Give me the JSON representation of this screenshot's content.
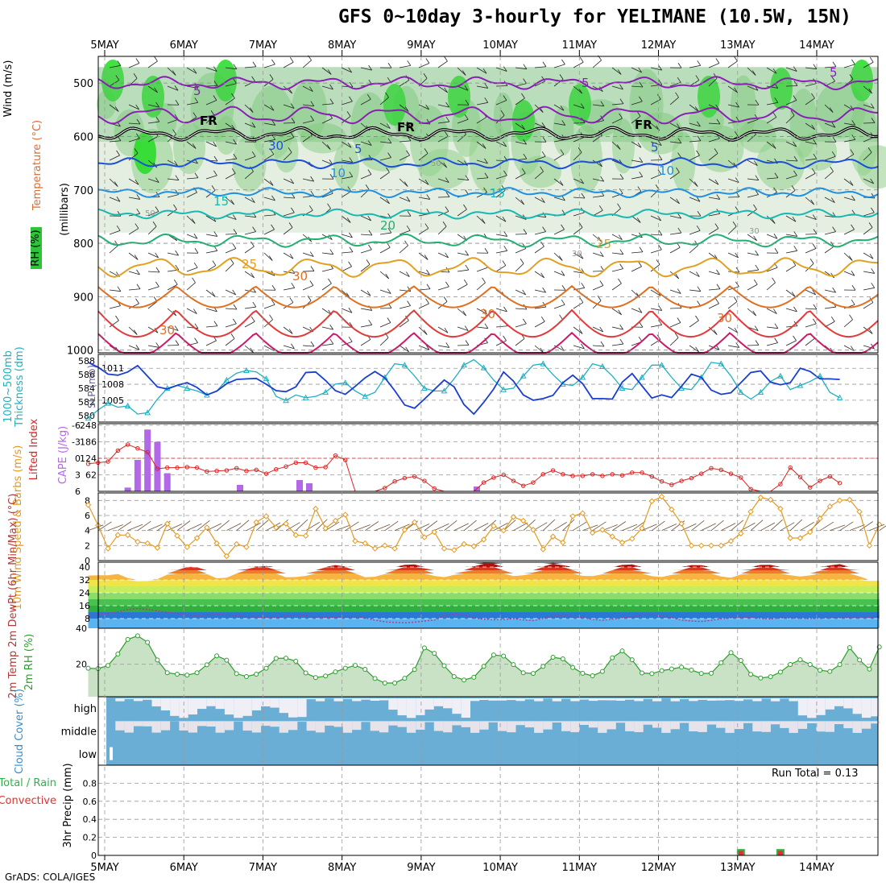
{
  "header": {
    "title": "GFS 0~10day 3-hourly for YELIMANE (10.5W, 15N)",
    "credit": "GrADS: COLA/IGES"
  },
  "dates": [
    "5MAY",
    "6MAY",
    "7MAY",
    "8MAY",
    "9MAY",
    "10MAY",
    "11MAY",
    "12MAY",
    "13MAY",
    "14MAY"
  ],
  "chart_data": [
    {
      "panel": "upper-air",
      "type": "heatmap",
      "ylabel_rh": "RH (%)",
      "ylabel_temp": "Temperature (°C)",
      "ylabel_wind": "Wind (m/s)",
      "ylabel_units": "(millibars)",
      "y_ticks": [
        500,
        600,
        700,
        800,
        900,
        1000
      ],
      "ylim": [
        450,
        1005
      ],
      "isotherm_labels": [
        "5",
        "5",
        "5",
        "FR",
        "FR",
        "FR",
        "30",
        "5",
        "5",
        "10",
        "10",
        "15",
        "15",
        "20",
        "25",
        "25",
        "30",
        "30",
        "30",
        "30",
        "50",
        "50",
        "30",
        "30"
      ],
      "isotherms_c": [
        -5,
        0,
        5,
        10,
        15,
        20,
        25,
        30
      ],
      "isotherm_colors": [
        "#8b1fb5",
        "#000000",
        "#1c4fd6",
        "#1e90e0",
        "#18b8b0",
        "#20b070",
        "#e0a020",
        "#e07020"
      ]
    },
    {
      "panel": "thickness-slp",
      "type": "line",
      "ylabel_left": "Thickness (dm)",
      "ylabel_left2": "1000~500mb",
      "ylabel_right": "SLP (mb)",
      "left_ticks": [
        580,
        582,
        584,
        586,
        588
      ],
      "right_ticks": [
        1005,
        1008,
        1011
      ],
      "ylim_thickness": [
        579.5,
        588.5
      ],
      "ylim_slp": [
        1001.5,
        1013
      ],
      "series": [
        {
          "name": "1000~500mb Thickness",
          "color": "#20b0c0",
          "values": [
            579.6,
            580.8,
            581.8,
            581.2,
            581.4,
            580.2,
            580.4,
            582.4,
            584,
            584.4,
            584,
            583.6,
            583,
            583.6,
            585.2,
            586.2,
            586.6,
            586.4,
            585.4,
            582.8,
            582.2,
            583,
            582.6,
            582.8,
            583.4,
            584.6,
            584.8,
            583.6,
            582.8,
            583.4,
            585.6,
            587.6,
            587.4,
            585.8,
            584,
            583.6,
            583.6,
            585.4,
            587.4,
            588.2,
            587,
            585.2,
            583.8,
            584,
            585.8,
            587.4,
            587.6,
            586,
            584.6,
            584.4,
            585.6,
            587.6,
            587.2,
            585.8,
            584,
            583.8,
            585.6,
            587.4,
            587.4,
            585.6,
            584,
            583.8,
            585.6,
            587.8,
            587.6,
            585.8,
            583.4,
            582.4,
            583.4,
            585,
            585.8,
            583.8,
            584.4,
            585,
            585.8,
            583.4,
            582.6
          ]
        },
        {
          "name": "SLP",
          "color": "#1a3fcf",
          "values": [
            1012.1,
            1011.2,
            1009.9,
            1009.7,
            1010.3,
            1011.5,
            1009.5,
            1007.5,
            1007.1,
            1007.8,
            1008.3,
            1007.4,
            1006,
            1006.7,
            1008.1,
            1008.9,
            1009,
            1009.1,
            1008,
            1006.8,
            1006.6,
            1007.5,
            1010.2,
            1010.3,
            1008.7,
            1006.8,
            1006.1,
            1007.6,
            1009.2,
            1010.4,
            1009.2,
            1006.8,
            1004.1,
            1003.5,
            1005.2,
            1007,
            1008.8,
            1007.5,
            1004.2,
            1002.4,
            1004.6,
            1007.1,
            1010.3,
            1008.6,
            1006,
            1005,
            1005.3,
            1005.9,
            1008.3,
            1009.7,
            1008.1,
            1005.3,
            1005.3,
            1005.2,
            1008.4,
            1010,
            1007.7,
            1005.4,
            1006,
            1005.5,
            1007.6,
            1009.9,
            1009.3,
            1006.9,
            1006.1,
            1006.4,
            1008.3,
            1010.2,
            1010.5,
            1008.4,
            1007.9,
            1008.3,
            1011,
            1010.4,
            1009,
            1009,
            1008.9
          ]
        }
      ]
    },
    {
      "panel": "li-cape",
      "type": "bar",
      "ylabel_left": "Lifted Index",
      "ylabel_right": "CAPE (J/kg)",
      "li_ticks": [
        -6,
        -3,
        0,
        3,
        6
      ],
      "cape_ticks": [
        62,
        124,
        186,
        248
      ],
      "li_ylim": [
        6,
        -6
      ],
      "cape_ylim": [
        0,
        248
      ],
      "series": [
        {
          "name": "Lifted Index",
          "color": "#dd2222",
          "values": [
            1,
            0.8,
            0.6,
            -1.4,
            -2.5,
            -1.8,
            -1.1,
            1.9,
            1.7,
            1.7,
            1.6,
            1.7,
            2.4,
            2.3,
            2.2,
            1.8,
            2.3,
            2.1,
            2.8,
            2,
            1.5,
            0.8,
            0.8,
            1.7,
            1.6,
            -0.5,
            0.3,
            6,
            9,
            8,
            5.4,
            4.2,
            3.6,
            3.3,
            4.1,
            5.5,
            8.1,
            10.6,
            10,
            7.2,
            4.4,
            3.5,
            3,
            4.1,
            5,
            4.4,
            2.9,
            2.2,
            2.9,
            3.2,
            3.2,
            2.9,
            3.2,
            2.9,
            3.1,
            2.6,
            2.6,
            3.3,
            4.2,
            4.8,
            4.1,
            3.6,
            2.8,
            1.8,
            2.1,
            2.8,
            3.5,
            5.6,
            6.7,
            7.1,
            4.7,
            1.7,
            3.4,
            5.3,
            4.1,
            3.3,
            4.5
          ]
        },
        {
          "name": "CAPE",
          "color": "#b368e8",
          "values": [
            0,
            0,
            0,
            0,
            14,
            118,
            232,
            186,
            68,
            0,
            0,
            0,
            0,
            0,
            0,
            0,
            0,
            0,
            0,
            0,
            0,
            0,
            0,
            0,
            0,
            0,
            0,
            0,
            0,
            0,
            0,
            0,
            0,
            0,
            0,
            0,
            0,
            0,
            0,
            0,
            0,
            0,
            0,
            0,
            0,
            0,
            0,
            0,
            0,
            0,
            0,
            0,
            0,
            0,
            0,
            0,
            0,
            0,
            0,
            0,
            0,
            0,
            0,
            0,
            0,
            0,
            0,
            0,
            0,
            0,
            0,
            0,
            0,
            0,
            0,
            0,
            0
          ]
        }
      ]
    },
    {
      "panel": "wind10m",
      "type": "line",
      "ylabel": "10m Wind Speed & Barbs (m/s)",
      "y_ticks": [
        0,
        2,
        4,
        6,
        8
      ],
      "ylim": [
        0,
        9
      ],
      "series": [
        {
          "name": "10m Wind Speed",
          "color": "#e39a22",
          "values": [
            7.4,
            4.7,
            1.6,
            3.4,
            3.4,
            2.5,
            2.3,
            1.7,
            4.9,
            3.3,
            1.8,
            3,
            4.4,
            2.3,
            0.6,
            2.2,
            1.8,
            5.1,
            5.9,
            4.4,
            4.9,
            3.4,
            3.3,
            6.9,
            4.3,
            5.3,
            6.1,
            2.6,
            2.3,
            1.6,
            2,
            1.6,
            4.1,
            5.1,
            3.1,
            3.8,
            1.6,
            1.4,
            2.2,
            1.9,
            2.8,
            4.6,
            4,
            5.8,
            5.3,
            4.1,
            1.5,
            3.2,
            2.4,
            5.9,
            6.3,
            3.7,
            4.1,
            3.2,
            2.4,
            2.9,
            4.3,
            7.9,
            8.5,
            6.8,
            4.9,
            2,
            2,
            2,
            2,
            2.6,
            3.6,
            6.5,
            8.4,
            8.1,
            6.9,
            3,
            3,
            3.8,
            5.6,
            7.2,
            8,
            8.1,
            6.5,
            2,
            4.8
          ]
        }
      ]
    },
    {
      "panel": "temp-dewpt",
      "type": "area",
      "ylabel": "2m Temp 2m DewPt (6hr Min/Max) (°C)",
      "y_ticks": [
        8,
        16,
        24,
        32,
        40
      ],
      "ylim": [
        2,
        43
      ],
      "series": [
        {
          "name": "2m Temp",
          "values": [
            34.7,
            34.9,
            34.9,
            35.7,
            33.2,
            31.2,
            31.3,
            32.5,
            35.3,
            38.1,
            40.1,
            39.9,
            35.6,
            33,
            33.4,
            36,
            38.6,
            40.3,
            40.6,
            38.2,
            33.6,
            33.8,
            34.5,
            37.3,
            39.8,
            41.2,
            40.3,
            36.1,
            33.6,
            34,
            35.6,
            38.3,
            41.4,
            41.6,
            39.2,
            34.5,
            33.7,
            35.1,
            37.1,
            40.4,
            42.7,
            42.6,
            37.9,
            34.4,
            34.9,
            36.6,
            40.3,
            42.6,
            41.1,
            38.2,
            34.5,
            34.4,
            35.5,
            38,
            41.3,
            41.6,
            37.2,
            34.3,
            33.8,
            35.1,
            38.1,
            41.2,
            41.1,
            37.6,
            34.1,
            33.4,
            35.4,
            38.5,
            41.3,
            41.4,
            38.5,
            34.9,
            34.1,
            34.8,
            37.6,
            41,
            41.8,
            38.5,
            34.2,
            31.3,
            31.5
          ]
        },
        {
          "name": "2m DewPt",
          "values": [
            10.1,
            10.5,
            11.2,
            12.3,
            13.6,
            14.2,
            13.8,
            12.7,
            12,
            11.1,
            10.2,
            9.8,
            10.3,
            10.6,
            10.3,
            9.8,
            9.2,
            8.9,
            8.5,
            8.6,
            9.8,
            10.2,
            9.6,
            9.1,
            8.8,
            8.8,
            9.2,
            9.2,
            8.4,
            7.1,
            6,
            5.6,
            5.4,
            5.8,
            6.5,
            7.1,
            9.7,
            10.8,
            10.2,
            8.4,
            7.7,
            7.3,
            7.4,
            8,
            7.2,
            6.8,
            8.1,
            9.6,
            9.6,
            9.2,
            8.8,
            7.4,
            7,
            7.6,
            8.5,
            9.1,
            10.3,
            10.4,
            9.6,
            8.6,
            7.1,
            6.5,
            6.2,
            6.9,
            7.9,
            8.4,
            8.7,
            8.7,
            8.1,
            7.8,
            8.4,
            8.3,
            8.2,
            8.1,
            8.2,
            8.4,
            8.4,
            8.5,
            8.5,
            8.6,
            9.6
          ]
        }
      ],
      "band_colors": [
        "#5ab4f2",
        "#2a78d6",
        "#2eaf3e",
        "#49c14f",
        "#8cdc6c",
        "#c8ec5c",
        "#f0e448",
        "#f8b440",
        "#f07a30",
        "#e0341e",
        "#b01010",
        "#6a3a2a"
      ]
    },
    {
      "panel": "rh2m",
      "type": "area",
      "ylabel": "2m RH (%)",
      "y_ticks": [
        20,
        40
      ],
      "ylim": [
        2,
        40
      ],
      "series": [
        {
          "name": "2m RH",
          "color": "#2c9e2c",
          "values": [
            17.8,
            17.6,
            19.3,
            25.7,
            33.8,
            35.8,
            32.2,
            22.4,
            15.3,
            14.5,
            14,
            15.3,
            19.7,
            24.7,
            22.3,
            14.8,
            13.2,
            14.5,
            17.8,
            23.3,
            23.4,
            21.7,
            15.2,
            12.6,
            13.5,
            15.8,
            17.8,
            19.4,
            17.2,
            12.1,
            9.6,
            9.6,
            12.2,
            17.1,
            29.1,
            26.1,
            19.2,
            13.2,
            11.3,
            12.8,
            18.9,
            25.2,
            24.6,
            19.8,
            15.3,
            14.9,
            18.8,
            23.9,
            23,
            18.2,
            15,
            13.6,
            16,
            23.6,
            27.4,
            22.5,
            15.2,
            14.8,
            16.5,
            17.4,
            18.4,
            16.8,
            14.9,
            15,
            20.9,
            26.5,
            22.1,
            14.4,
            12.4,
            13.1,
            15.7,
            19.9,
            22.5,
            19.9,
            16.7,
            16,
            19.8,
            29.2,
            22.4,
            17.3,
            29.6
          ]
        }
      ]
    },
    {
      "panel": "cloud",
      "type": "bar",
      "ylabel": "Cloud Cover (%)",
      "levels": [
        "high",
        "middle",
        "low"
      ]
    },
    {
      "panel": "precip",
      "type": "bar",
      "ylabel": "3hr Precip (mm)",
      "legend_left": "Total / Rain",
      "legend_left2": "Convective",
      "run_total": "Run Total = 0.13",
      "y_ticks": [
        0,
        0.2,
        0.4,
        0.6,
        0.8
      ],
      "ylim": [
        0,
        1
      ],
      "series": [
        {
          "name": "Total / Rain",
          "color": "#2db24a",
          "values": {
            "66": 0.07,
            "70": 0.07
          }
        },
        {
          "name": "Convective",
          "color": "#e03030",
          "values": {
            "66": 0.05,
            "70": 0.05
          }
        }
      ]
    }
  ]
}
